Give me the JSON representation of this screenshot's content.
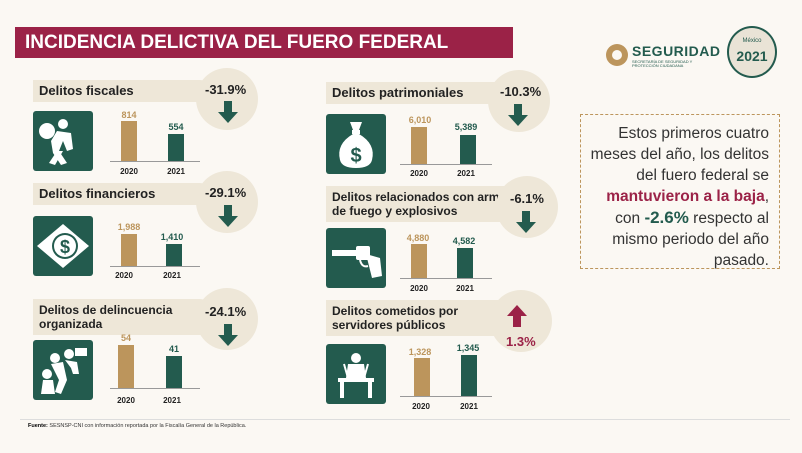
{
  "title": "INCIDENCIA DELICTIVA DEL FUERO FEDERAL",
  "brand": {
    "name": "SEGURIDAD",
    "sub": "SECRETARÍA DE SEGURIDAD Y PROTECCIÓN CIUDADANA",
    "logo_country": "México",
    "logo_year": "2021"
  },
  "categories": [
    {
      "label": "Delitos fiscales",
      "change": "-31.9%",
      "direction": "down",
      "icon": "thief-with-money-bag-icon",
      "values": [
        "814",
        "554"
      ],
      "years": [
        "2020",
        "2021"
      ]
    },
    {
      "label": "Delitos financieros",
      "change": "-29.1%",
      "direction": "down",
      "icon": "dollar-bill-icon",
      "values": [
        "1,988",
        "1,410"
      ],
      "years": [
        "2020",
        "2021"
      ]
    },
    {
      "label": "Delitos de delincuencia organizada",
      "change": "-24.1%",
      "direction": "down",
      "icon": "organized-crime-group-icon",
      "values": [
        "54",
        "41"
      ],
      "years": [
        "2020",
        "2021"
      ]
    },
    {
      "label": "Delitos patrimoniales",
      "change": "-10.3%",
      "direction": "down",
      "icon": "money-bag-icon",
      "values": [
        "6,010",
        "5,389"
      ],
      "years": [
        "2020",
        "2021"
      ]
    },
    {
      "label": "Delitos relacionados con armas de fuego y explosivos",
      "change": "-6.1%",
      "direction": "down",
      "icon": "revolver-icon",
      "values": [
        "4,880",
        "4,582"
      ],
      "years": [
        "2020",
        "2021"
      ]
    },
    {
      "label": "Delitos cometidos por servidores públicos",
      "change": "1.3%",
      "direction": "up",
      "icon": "public-servant-desk-icon",
      "values": [
        "1,328",
        "1,345"
      ],
      "years": [
        "2020",
        "2021"
      ]
    }
  ],
  "note": {
    "p1": "Estos primeros cuatro meses del año, los delitos del fuero federal se ",
    "h1": "mantuvieron a la baja",
    "p2": ", con ",
    "h2": "-2.6%",
    "p3": " respecto al mismo periodo del año pasado."
  },
  "source": {
    "label": "Fuente:",
    "text": " SESNSP-CNI con información reportada por la Fiscalía General de la República."
  },
  "colors": {
    "burgundy": "#9b2247",
    "green": "#235b4e",
    "gold": "#bc955c",
    "cream": "#eee7d8"
  }
}
